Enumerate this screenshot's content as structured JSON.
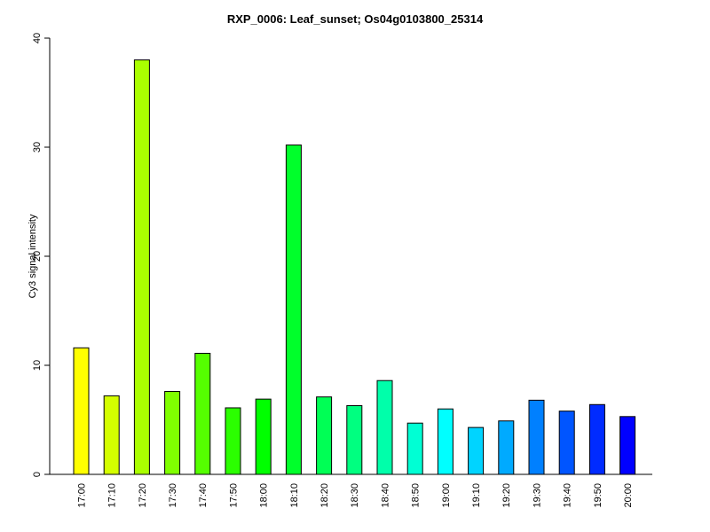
{
  "chart_data": {
    "type": "bar",
    "title": "RXP_0006: Leaf_sunset; Os04g0103800_25314",
    "xlabel": "",
    "ylabel": "Cy3 signal intensity",
    "ylim": [
      0,
      40
    ],
    "yticks": [
      0,
      10,
      20,
      30,
      40
    ],
    "grid": false,
    "legend": "none",
    "categories": [
      "17:00",
      "17:10",
      "17:20",
      "17:30",
      "17:40",
      "17:50",
      "18:00",
      "18:10",
      "18:20",
      "18:30",
      "18:40",
      "18:50",
      "19:00",
      "19:10",
      "19:20",
      "19:30",
      "19:40",
      "19:50",
      "20:00"
    ],
    "values": [
      11.6,
      7.2,
      38.0,
      7.6,
      11.1,
      6.1,
      6.9,
      30.2,
      7.1,
      6.3,
      8.6,
      4.7,
      6.0,
      4.3,
      4.9,
      6.8,
      5.8,
      6.4,
      5.3
    ],
    "colors": [
      "#FFFF00",
      "#D4FF00",
      "#AAFF00",
      "#80FF00",
      "#55FF00",
      "#2BFF00",
      "#00FF00",
      "#00FF2B",
      "#00FF55",
      "#00FF80",
      "#00FFAA",
      "#00FFD4",
      "#00FFFF",
      "#00D4FF",
      "#00AAFF",
      "#0080FF",
      "#0055FF",
      "#002BFF",
      "#0000FF"
    ]
  }
}
